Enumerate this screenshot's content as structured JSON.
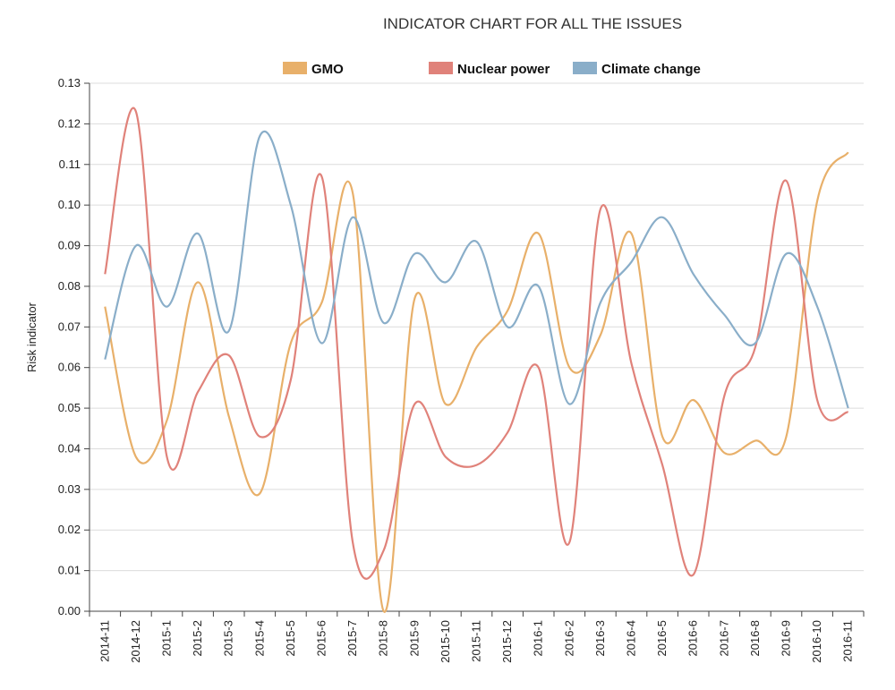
{
  "chart_data": {
    "type": "line",
    "title": "INDICATOR CHART FOR ALL THE ISSUES",
    "ylabel": "Risk indicator",
    "xlabel": "",
    "ylim": [
      0,
      0.13
    ],
    "yticks": [
      "0.00",
      "0.01",
      "0.02",
      "0.03",
      "0.04",
      "0.05",
      "0.06",
      "0.07",
      "0.08",
      "0.09",
      "0.10",
      "0.11",
      "0.12",
      "0.13"
    ],
    "grid": true,
    "legend_position": "top",
    "categories": [
      "2014-11",
      "2014-12",
      "2015-1",
      "2015-2",
      "2015-3",
      "2015-4",
      "2015-5",
      "2015-6",
      "2015-7",
      "2015-8",
      "2015-9",
      "2015-10",
      "2015-11",
      "2015-12",
      "2016-1",
      "2016-2",
      "2016-3",
      "2016-4",
      "2016-5",
      "2016-6",
      "2016-7",
      "2016-8",
      "2016-9",
      "2016-10",
      "2016-11"
    ],
    "series": [
      {
        "name": "GMO",
        "color": "#e8b06a",
        "values": [
          0.075,
          0.038,
          0.047,
          0.081,
          0.048,
          0.029,
          0.066,
          0.076,
          0.103,
          0.0,
          0.077,
          0.051,
          0.065,
          0.074,
          0.093,
          0.06,
          0.068,
          0.093,
          0.043,
          0.052,
          0.039,
          0.042,
          0.043,
          0.101,
          0.113
        ]
      },
      {
        "name": "Nuclear power",
        "color": "#e0827a",
        "values": [
          0.083,
          0.123,
          0.038,
          0.054,
          0.063,
          0.043,
          0.057,
          0.107,
          0.017,
          0.015,
          0.051,
          0.038,
          0.036,
          0.044,
          0.06,
          0.017,
          0.099,
          0.061,
          0.036,
          0.009,
          0.053,
          0.065,
          0.106,
          0.052,
          0.049
        ]
      },
      {
        "name": "Climate change",
        "color": "#8aaec9",
        "values": [
          0.062,
          0.09,
          0.075,
          0.093,
          0.069,
          0.117,
          0.1,
          0.066,
          0.097,
          0.071,
          0.088,
          0.081,
          0.091,
          0.07,
          0.08,
          0.051,
          0.076,
          0.086,
          0.097,
          0.083,
          0.073,
          0.066,
          0.088,
          0.075,
          0.05
        ]
      }
    ]
  }
}
